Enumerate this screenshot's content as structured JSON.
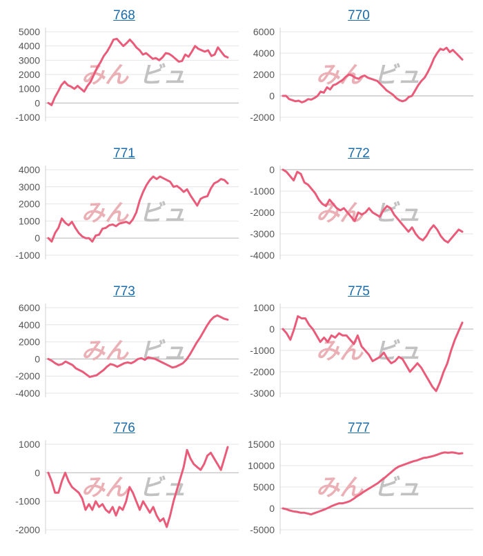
{
  "watermark": {
    "left": "みん",
    "right": "ビュ"
  },
  "colors": {
    "line": "#ea5a79",
    "title": "#1a6aa8",
    "grid": "#e4e4e4",
    "watermark_pink": "#eab0b6",
    "watermark_gray": "#c2c2c2"
  },
  "chart_data": [
    {
      "type": "line",
      "title": "768",
      "yticks": [
        5000,
        4000,
        3000,
        2000,
        1000,
        0,
        -1000
      ],
      "ylim": [
        -1000,
        5000
      ],
      "values": [
        0,
        -150,
        400,
        800,
        1250,
        1500,
        1250,
        1150,
        1000,
        1200,
        1000,
        800,
        1200,
        1500,
        2000,
        2500,
        2850,
        3300,
        3600,
        4000,
        4450,
        4500,
        4250,
        4000,
        4200,
        4450,
        4200,
        3900,
        3700,
        3400,
        3500,
        3300,
        3100,
        3150,
        3000,
        3200,
        3500,
        3450,
        3300,
        3100,
        2900,
        2950,
        3400,
        3250,
        3600,
        4000,
        3800,
        3700,
        3600,
        3700,
        3300,
        3400,
        3900,
        3600,
        3300,
        3200
      ]
    },
    {
      "type": "line",
      "title": "770",
      "yticks": [
        6000,
        4000,
        2000,
        0,
        -2000
      ],
      "ylim": [
        -2000,
        6000
      ],
      "values": [
        0,
        0,
        -300,
        -400,
        -500,
        -450,
        -600,
        -500,
        -300,
        -350,
        -200,
        0,
        400,
        300,
        800,
        600,
        1000,
        1100,
        1300,
        1500,
        1800,
        2000,
        1900,
        1700,
        1600,
        1800,
        1900,
        1700,
        1600,
        1500,
        1400,
        1100,
        800,
        500,
        300,
        100,
        -200,
        -400,
        -500,
        -400,
        -100,
        0,
        500,
        1000,
        1400,
        1700,
        2200,
        2800,
        3500,
        4000,
        4400,
        4300,
        4500,
        4100,
        4300,
        4000,
        3700,
        3400
      ]
    },
    {
      "type": "line",
      "title": "771",
      "yticks": [
        4000,
        3000,
        2000,
        1000,
        0,
        -1000
      ],
      "ylim": [
        -1000,
        4000
      ],
      "values": [
        0,
        -200,
        300,
        600,
        1150,
        900,
        750,
        950,
        600,
        300,
        100,
        0,
        0,
        -200,
        150,
        200,
        550,
        600,
        750,
        800,
        700,
        850,
        900,
        950,
        850,
        1100,
        1500,
        2200,
        2700,
        3100,
        3400,
        3600,
        3450,
        3600,
        3500,
        3400,
        3300,
        3000,
        3050,
        2900,
        2700,
        2850,
        2500,
        2200,
        1900,
        2300,
        2400,
        2450,
        2900,
        3200,
        3300,
        3450,
        3400,
        3200
      ]
    },
    {
      "type": "line",
      "title": "772",
      "yticks": [
        0,
        -1000,
        -2000,
        -3000,
        -4000
      ],
      "ylim": [
        -4000,
        0
      ],
      "values": [
        0,
        -100,
        -300,
        -500,
        -100,
        -200,
        -600,
        -700,
        -900,
        -1100,
        -1400,
        -1600,
        -1700,
        -1400,
        -1600,
        -1800,
        -1900,
        -1800,
        -2000,
        -2200,
        -2400,
        -2000,
        -2100,
        -2000,
        -1800,
        -2000,
        -2100,
        -2200,
        -1900,
        -1700,
        -1800,
        -2100,
        -2300,
        -2500,
        -2700,
        -2900,
        -2700,
        -3000,
        -3200,
        -3300,
        -3100,
        -2800,
        -2600,
        -2800,
        -3100,
        -3300,
        -3400,
        -3200,
        -3000,
        -2800,
        -2900
      ]
    },
    {
      "type": "line",
      "title": "773",
      "yticks": [
        6000,
        4000,
        2000,
        0,
        -2000,
        -4000
      ],
      "ylim": [
        -4000,
        6000
      ],
      "values": [
        0,
        -200,
        -500,
        -700,
        -600,
        -300,
        -500,
        -700,
        -1100,
        -1300,
        -1500,
        -1800,
        -2100,
        -2000,
        -1900,
        -1600,
        -1300,
        -900,
        -600,
        -700,
        -900,
        -700,
        -500,
        -400,
        -500,
        -300,
        0,
        100,
        -100,
        200,
        100,
        0,
        -200,
        -400,
        -600,
        -800,
        -1000,
        -900,
        -700,
        -500,
        -100,
        500,
        1200,
        1900,
        2500,
        3200,
        3900,
        4500,
        4900,
        5100,
        4900,
        4700,
        4600
      ]
    },
    {
      "type": "line",
      "title": "775",
      "yticks": [
        1000,
        0,
        -1000,
        -2000,
        -3000
      ],
      "ylim": [
        -3000,
        1000
      ],
      "values": [
        0,
        -200,
        -500,
        0,
        600,
        500,
        500,
        200,
        0,
        -300,
        -600,
        -400,
        -600,
        -300,
        -400,
        -200,
        -300,
        -300,
        -500,
        -700,
        -300,
        -800,
        -1000,
        -1200,
        -1500,
        -1400,
        -1300,
        -1100,
        -1400,
        -1600,
        -1500,
        -1300,
        -1400,
        -1700,
        -2000,
        -1800,
        -1600,
        -1800,
        -2100,
        -2400,
        -2700,
        -2900,
        -2500,
        -2000,
        -1600,
        -1000,
        -500,
        -100,
        300
      ]
    },
    {
      "type": "line",
      "title": "776",
      "yticks": [
        1000,
        0,
        -1000,
        -2000
      ],
      "ylim": [
        -2000,
        1000
      ],
      "values": [
        0,
        -300,
        -700,
        -700,
        -300,
        0,
        -300,
        -500,
        -600,
        -700,
        -900,
        -1300,
        -1100,
        -1300,
        -1000,
        -1200,
        -1100,
        -1300,
        -1400,
        -1200,
        -1500,
        -1200,
        -1300,
        -1000,
        -500,
        -700,
        -1000,
        -1300,
        -1000,
        -1200,
        -1400,
        -1200,
        -1500,
        -1700,
        -1600,
        -1900,
        -1500,
        -1000,
        -600,
        -200,
        200,
        800,
        500,
        300,
        200,
        100,
        300,
        600,
        700,
        500,
        300,
        100,
        500,
        900
      ]
    },
    {
      "type": "line",
      "title": "777",
      "yticks": [
        15000,
        10000,
        5000,
        0,
        -5000
      ],
      "ylim": [
        -5000,
        15000
      ],
      "values": [
        0,
        -200,
        -500,
        -700,
        -800,
        -1000,
        -1000,
        -1200,
        -1400,
        -1100,
        -800,
        -500,
        -200,
        200,
        600,
        900,
        1200,
        1200,
        1400,
        1700,
        2200,
        2800,
        3300,
        3900,
        4400,
        4900,
        5400,
        5900,
        6600,
        7200,
        7900,
        8600,
        9300,
        9800,
        10100,
        10400,
        10700,
        11000,
        11200,
        11500,
        11800,
        11900,
        12100,
        12300,
        12600,
        12900,
        13100,
        13000,
        13100,
        13000,
        12800,
        12900
      ]
    }
  ]
}
